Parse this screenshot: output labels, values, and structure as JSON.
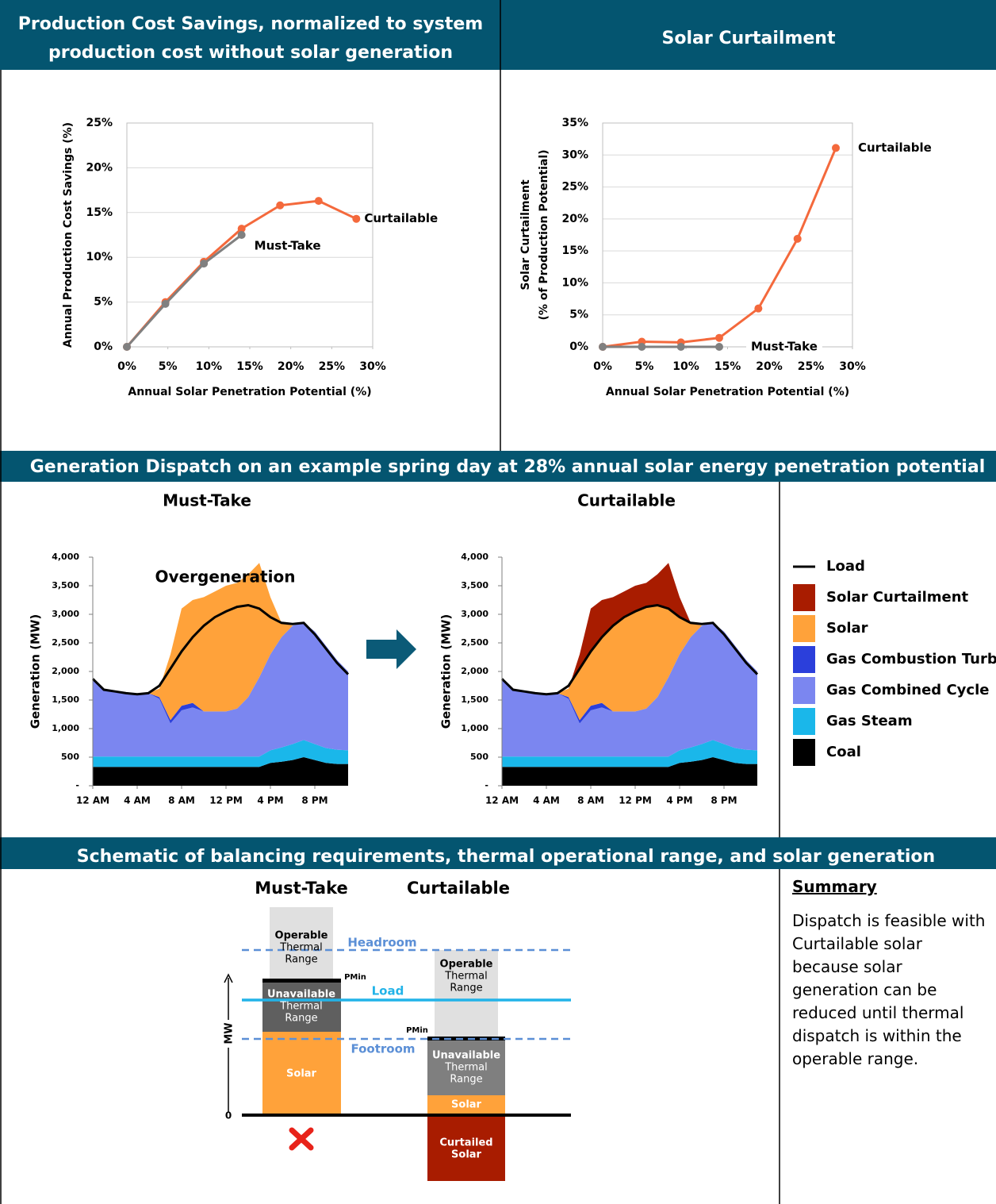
{
  "headers": {
    "top_left": [
      "Production Cost Savings, normalized to system",
      "production cost without solar generation"
    ],
    "top_right": "Solar Curtailment",
    "dispatch": "Generation Dispatch on an example spring day at 28% annual solar energy penetration potential",
    "schematic": "Schematic of balancing requirements, thermal operational range, and solar generation"
  },
  "chart_data": [
    {
      "type": "line",
      "ylabel": [
        "Annual Production Cost Savings (%)"
      ],
      "xlabel": "Annual Solar Penetration Potential (%)",
      "xlim": [
        0,
        30
      ],
      "ylim": [
        0,
        25
      ],
      "grid": true,
      "xticks": [
        {
          "value": 0,
          "label": "0%"
        },
        {
          "value": 5,
          "label": "5%"
        },
        {
          "value": 10,
          "label": "10%"
        },
        {
          "value": 15,
          "label": "15%"
        },
        {
          "value": 20,
          "label": "20%"
        },
        {
          "value": 25,
          "label": "25%"
        },
        {
          "value": 30,
          "label": "30%"
        }
      ],
      "yticks": [
        {
          "value": 0,
          "label": "0%"
        },
        {
          "value": 5,
          "label": "5%"
        },
        {
          "value": 10,
          "label": "10%"
        },
        {
          "value": 15,
          "label": "15%"
        },
        {
          "value": 20,
          "label": "20%"
        },
        {
          "value": 25,
          "label": "25%"
        }
      ],
      "series": [
        {
          "name": "Curtailable",
          "color": "#f4693c",
          "x": [
            0,
            4.7,
            9.4,
            14,
            18.7,
            23.4,
            28
          ],
          "values": [
            0,
            5.0,
            9.5,
            13.2,
            15.8,
            16.3,
            14.3
          ]
        },
        {
          "name": "Must-Take",
          "color": "#808080",
          "x": [
            0,
            4.7,
            9.4,
            14
          ],
          "values": [
            0,
            4.8,
            9.3,
            12.5
          ]
        }
      ]
    },
    {
      "type": "line",
      "ylabel": [
        "Solar Curtailment",
        "(% of Production Potential)"
      ],
      "xlabel": "Annual Solar Penetration Potential (%)",
      "xlim": [
        0,
        30
      ],
      "ylim": [
        0,
        35
      ],
      "grid": true,
      "xticks": [
        {
          "value": 0,
          "label": "0%"
        },
        {
          "value": 5,
          "label": "5%"
        },
        {
          "value": 10,
          "label": "10%"
        },
        {
          "value": 15,
          "label": "15%"
        },
        {
          "value": 20,
          "label": "20%"
        },
        {
          "value": 25,
          "label": "25%"
        },
        {
          "value": 30,
          "label": "30%"
        }
      ],
      "yticks": [
        {
          "value": 0,
          "label": "0%"
        },
        {
          "value": 5,
          "label": "5%"
        },
        {
          "value": 10,
          "label": "10%"
        },
        {
          "value": 15,
          "label": "15%"
        },
        {
          "value": 20,
          "label": "20%"
        },
        {
          "value": 25,
          "label": "25%"
        },
        {
          "value": 30,
          "label": "30%"
        },
        {
          "value": 35,
          "label": "35%"
        }
      ],
      "series": [
        {
          "name": "Curtailable",
          "color": "#f4693c",
          "x": [
            0,
            4.7,
            9.4,
            14,
            18.7,
            23.4,
            28
          ],
          "values": [
            0,
            0.8,
            0.7,
            1.4,
            6.0,
            16.9,
            31.1
          ]
        },
        {
          "name": "Must-Take",
          "color": "#808080",
          "x": [
            0,
            4.7,
            9.4,
            14
          ],
          "values": [
            0,
            0,
            0,
            0
          ]
        }
      ]
    },
    {
      "type": "area",
      "title": "Must-Take",
      "ylabel": "Generation (MW)",
      "annotation": "Overgeneration",
      "xlim": [
        0,
        24
      ],
      "ylim": [
        0,
        4000
      ],
      "x": [
        0,
        1,
        2,
        3,
        4,
        5,
        6,
        7,
        8,
        9,
        10,
        11,
        12,
        13,
        14,
        15,
        16,
        17,
        18,
        19,
        20,
        21,
        22,
        23
      ],
      "xticks": [
        {
          "value": 0,
          "label": "12 AM"
        },
        {
          "value": 4,
          "label": "4 AM"
        },
        {
          "value": 8,
          "label": "8 AM"
        },
        {
          "value": 12,
          "label": "12 PM"
        },
        {
          "value": 16,
          "label": "4 PM"
        },
        {
          "value": 20,
          "label": "8 PM"
        }
      ],
      "yticks": [
        {
          "value": 0,
          "label": "-"
        },
        500,
        {
          "value": 1000,
          "label": "1,000"
        },
        {
          "value": 1500,
          "label": "1,500"
        },
        {
          "value": 2000,
          "label": "2,000"
        },
        {
          "value": 2500,
          "label": "2,500"
        },
        {
          "value": 3000,
          "label": "3,000"
        },
        {
          "value": 3500,
          "label": "3,500"
        },
        {
          "value": 4000,
          "label": "4,000"
        }
      ],
      "series": [
        {
          "name": "Coal",
          "color": "#000000",
          "values": [
            330,
            330,
            330,
            330,
            330,
            330,
            330,
            330,
            330,
            330,
            330,
            330,
            330,
            330,
            330,
            330,
            400,
            420,
            450,
            500,
            450,
            400,
            380,
            380
          ]
        },
        {
          "name": "Gas Steam",
          "color": "#1ab7ea",
          "values": [
            180,
            180,
            180,
            180,
            180,
            180,
            180,
            180,
            180,
            180,
            180,
            180,
            180,
            180,
            180,
            180,
            220,
            250,
            280,
            300,
            280,
            260,
            250,
            240
          ]
        },
        {
          "name": "Gas Combined Cycle",
          "color": "#7b86f0",
          "values": [
            1340,
            1170,
            1140,
            1110,
            1090,
            1110,
            1010,
            580,
            810,
            860,
            790,
            790,
            790,
            840,
            1040,
            1390,
            1680,
            1930,
            2070,
            2050,
            1970,
            1790,
            1570,
            1380
          ]
        },
        {
          "name": "Gas Combustion Turbine",
          "color": "#2b3fdb",
          "values": [
            0,
            0,
            0,
            0,
            0,
            0,
            30,
            60,
            80,
            80,
            0,
            0,
            0,
            0,
            0,
            0,
            0,
            0,
            0,
            0,
            0,
            0,
            0,
            0
          ]
        },
        {
          "name": "Solar",
          "color": "#ffa23a",
          "values": [
            0,
            0,
            0,
            0,
            0,
            0,
            150,
            1150,
            1700,
            1800,
            2000,
            2100,
            2200,
            2200,
            2150,
            2000,
            1000,
            250,
            0,
            0,
            0,
            0,
            0,
            0
          ]
        },
        {
          "name": "Solar Curtailment",
          "color": "#a81c00",
          "values": [
            0,
            0,
            0,
            0,
            0,
            0,
            0,
            0,
            0,
            0,
            0,
            0,
            0,
            0,
            0,
            0,
            0,
            0,
            0,
            0,
            0,
            0,
            0,
            0
          ]
        }
      ],
      "load": {
        "name": "Load",
        "color": "#000000",
        "values": [
          1870,
          1680,
          1650,
          1620,
          1600,
          1620,
          1750,
          2050,
          2350,
          2600,
          2800,
          2950,
          3050,
          3130,
          3160,
          3100,
          2950,
          2850,
          2830,
          2850,
          2650,
          2400,
          2150,
          1950
        ]
      }
    },
    {
      "type": "area",
      "title": "Curtailable",
      "ylabel": "Generation (MW)",
      "xlim": [
        0,
        24
      ],
      "ylim": [
        0,
        4000
      ],
      "x": [
        0,
        1,
        2,
        3,
        4,
        5,
        6,
        7,
        8,
        9,
        10,
        11,
        12,
        13,
        14,
        15,
        16,
        17,
        18,
        19,
        20,
        21,
        22,
        23
      ],
      "xticks": [
        {
          "value": 0,
          "label": "12 AM"
        },
        {
          "value": 4,
          "label": "4 AM"
        },
        {
          "value": 8,
          "label": "8 AM"
        },
        {
          "value": 12,
          "label": "12 PM"
        },
        {
          "value": 16,
          "label": "4 PM"
        },
        {
          "value": 20,
          "label": "8 PM"
        }
      ],
      "yticks": [
        {
          "value": 0,
          "label": "-"
        },
        500,
        {
          "value": 1000,
          "label": "1,000"
        },
        {
          "value": 1500,
          "label": "1,500"
        },
        {
          "value": 2000,
          "label": "2,000"
        },
        {
          "value": 2500,
          "label": "2,500"
        },
        {
          "value": 3000,
          "label": "3,000"
        },
        {
          "value": 3500,
          "label": "3,500"
        },
        {
          "value": 4000,
          "label": "4,000"
        }
      ],
      "series": [
        {
          "color": "#000000",
          "values": [
            330,
            330,
            330,
            330,
            330,
            330,
            330,
            330,
            330,
            330,
            330,
            330,
            330,
            330,
            330,
            330,
            400,
            420,
            450,
            500,
            450,
            400,
            380,
            380
          ]
        },
        {
          "color": "#1ab7ea",
          "values": [
            180,
            180,
            180,
            180,
            180,
            180,
            180,
            180,
            180,
            180,
            180,
            180,
            180,
            180,
            180,
            180,
            220,
            250,
            280,
            300,
            280,
            260,
            250,
            240
          ]
        },
        {
          "color": "#7b86f0",
          "values": [
            1340,
            1170,
            1140,
            1110,
            1090,
            1110,
            1010,
            580,
            810,
            860,
            790,
            790,
            790,
            840,
            1040,
            1390,
            1680,
            1930,
            2070,
            2050,
            1970,
            1790,
            1570,
            1380
          ]
        },
        {
          "color": "#2b3fdb",
          "values": [
            0,
            0,
            0,
            0,
            0,
            0,
            30,
            60,
            80,
            80,
            0,
            0,
            0,
            0,
            0,
            0,
            0,
            0,
            0,
            0,
            0,
            0,
            0,
            0
          ]
        },
        {
          "color": "#ffa23a",
          "values": [
            0,
            0,
            0,
            0,
            0,
            0,
            150,
            900,
            950,
            1150,
            1500,
            1650,
            1750,
            1780,
            1610,
            1200,
            650,
            250,
            0,
            0,
            0,
            0,
            0,
            0
          ]
        },
        {
          "color": "#a81c00",
          "values": [
            0,
            0,
            0,
            0,
            0,
            0,
            0,
            250,
            750,
            650,
            500,
            450,
            450,
            420,
            540,
            800,
            350,
            0,
            0,
            0,
            0,
            0,
            0,
            0
          ]
        }
      ],
      "load": {
        "color": "#000000",
        "values": [
          1870,
          1680,
          1650,
          1620,
          1600,
          1620,
          1750,
          2050,
          2350,
          2600,
          2800,
          2950,
          3050,
          3130,
          3160,
          3100,
          2950,
          2850,
          2830,
          2850,
          2650,
          2400,
          2150,
          1950
        ]
      }
    }
  ],
  "schematic": {
    "must_take": {
      "title": "Must-Take",
      "operable": [
        "Operable",
        "Thermal",
        "Range"
      ],
      "pmin": "PMin",
      "unavailable": [
        "Unavailable",
        "Thermal",
        "Range"
      ],
      "solar": "Solar"
    },
    "curtailable": {
      "title": "Curtailable",
      "operable": [
        "Operable",
        "Thermal",
        "Range"
      ],
      "pmin": "PMin",
      "unavailable": [
        "Unavailable",
        "Thermal",
        "Range"
      ],
      "solar": "Solar",
      "curtailed": [
        "Curtailed",
        "Solar"
      ]
    },
    "headroom": "Headroom",
    "load": "Load",
    "footroom": "Footroom",
    "axis": "MW",
    "zero": "0"
  },
  "summary": {
    "heading": "Summary",
    "text": "Dispatch is feasible with Curtailable solar because solar generation can be reduced until thermal dispatch is within the operable range."
  }
}
